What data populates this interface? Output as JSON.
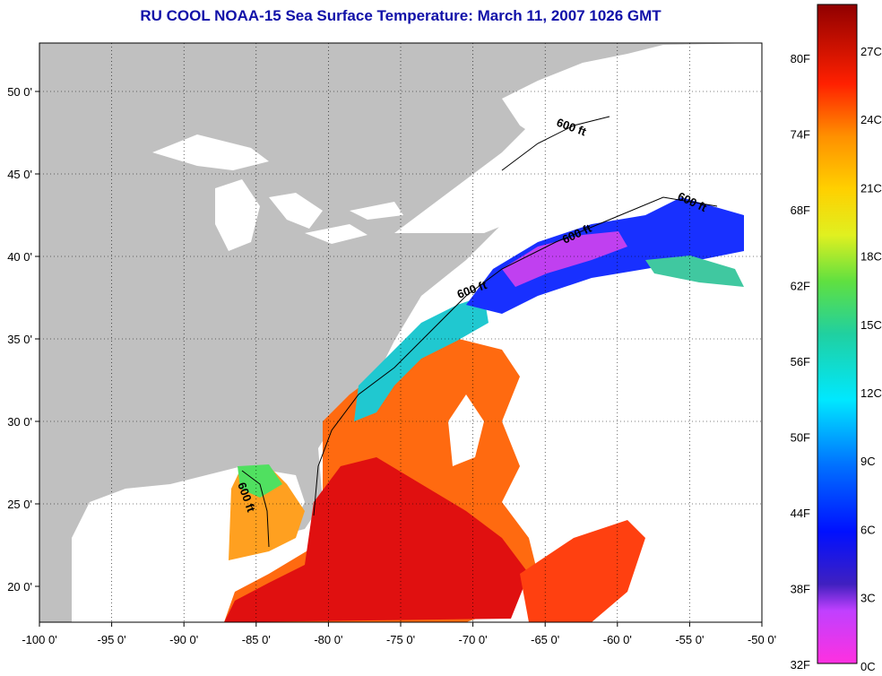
{
  "title": "RU COOL  NOAA-15  Sea Surface Temperature:  March 11, 2007 1026 GMT",
  "map": {
    "lon_labels": [
      "-100 0'",
      "-95 0'",
      "-90 0'",
      "-85 0'",
      "-80 0'",
      "-75 0'",
      "-70 0'",
      "-65 0'",
      "-60 0'",
      "-55 0'",
      "-50 0'"
    ],
    "lat_labels": [
      "50 0'",
      "45 0'",
      "40 0'",
      "35 0'",
      "30 0'",
      "25 0'",
      "20 0'"
    ],
    "contour_label": "600 ft",
    "land_color": "#c0c0c0",
    "cloud_color": "#ffffff"
  },
  "colorbar": {
    "f_labels": [
      "80F",
      "74F",
      "68F",
      "62F",
      "56F",
      "50F",
      "44F",
      "38F",
      "32F"
    ],
    "c_labels": [
      "27C",
      "24C",
      "21C",
      "18C",
      "15C",
      "12C",
      "9C",
      "6C",
      "3C",
      "0C"
    ]
  }
}
